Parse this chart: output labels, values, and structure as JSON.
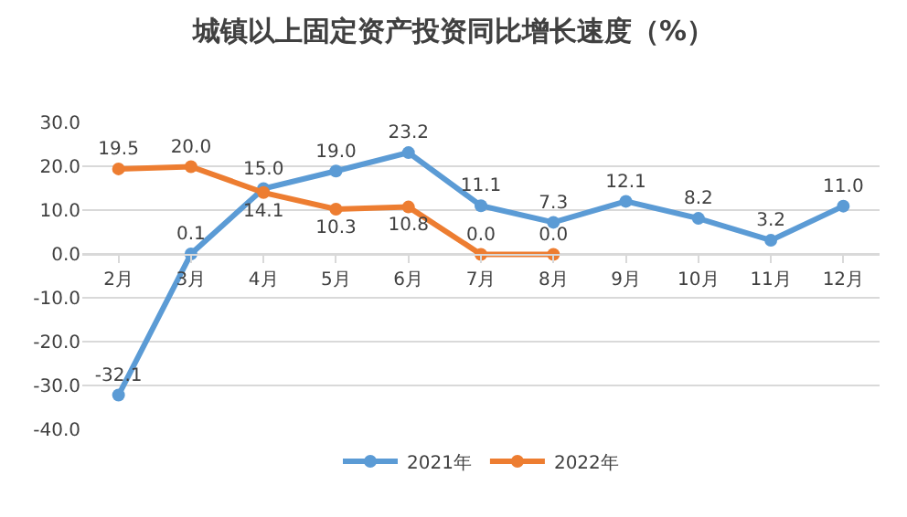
{
  "chart_data": {
    "type": "line",
    "title": "城镇以上固定资产投资同比增长速度（%）",
    "categories": [
      "2月",
      "3月",
      "4月",
      "5月",
      "6月",
      "7月",
      "8月",
      "9月",
      "10月",
      "11月",
      "12月"
    ],
    "series": [
      {
        "name": "2021年",
        "color": "#5b9bd5",
        "values": [
          -32.1,
          0.1,
          15.0,
          19.0,
          23.2,
          11.1,
          7.3,
          12.1,
          8.2,
          3.2,
          11.0
        ],
        "value_labels": [
          "-32.1",
          "0.1",
          "15.0",
          "19.0",
          "23.2",
          "11.1",
          "7.3",
          "12.1",
          "8.2",
          "3.2",
          "11.0"
        ]
      },
      {
        "name": "2022年",
        "color": "#ed7d31",
        "values": [
          19.5,
          20.0,
          14.1,
          10.3,
          10.8,
          0.0,
          0.0,
          null,
          null,
          null,
          null
        ],
        "value_labels": [
          "19.5",
          "20.0",
          "14.1",
          "10.3",
          "10.8",
          "0.0",
          "0.0",
          null,
          null,
          null,
          null
        ]
      }
    ],
    "ylim": [
      -40,
      30
    ],
    "yticks": [
      {
        "value": -40,
        "label": "-40.0"
      },
      {
        "value": -30,
        "label": "-30.0"
      },
      {
        "value": -20,
        "label": "-20.0"
      },
      {
        "value": -10,
        "label": "-10.0"
      },
      {
        "value": 0,
        "label": "0.0"
      },
      {
        "value": 10,
        "label": "10.0"
      },
      {
        "value": 20,
        "label": "20.0"
      },
      {
        "value": 30,
        "label": "30.0"
      }
    ],
    "grid": "y",
    "legend": "bottom",
    "marker": "circle",
    "line_style": "solid"
  }
}
